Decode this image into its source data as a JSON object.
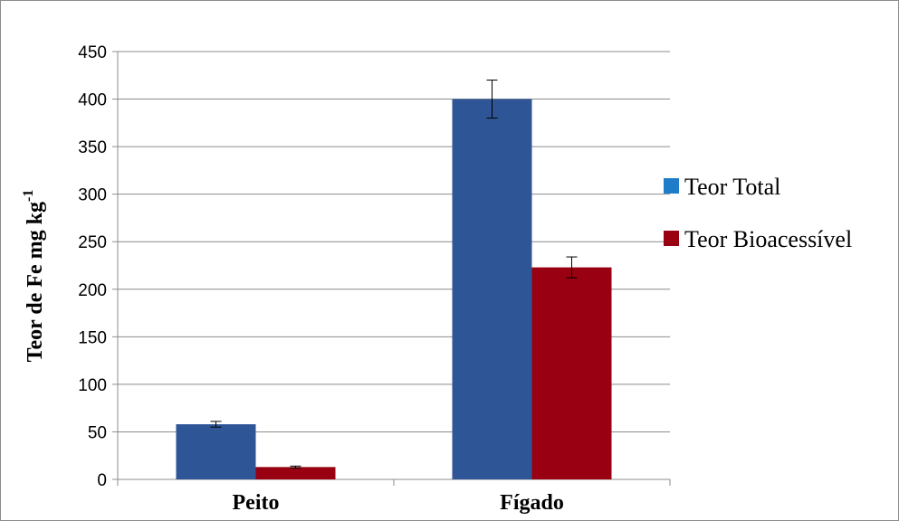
{
  "chart_data": {
    "type": "bar",
    "categories": [
      "Peito",
      "Fígado"
    ],
    "series": [
      {
        "name": "Teor Total",
        "values": [
          58,
          400
        ],
        "errors": [
          3,
          20
        ],
        "color": "#2E5596"
      },
      {
        "name": "Teor Bioacessível",
        "values": [
          13,
          223
        ],
        "errors": [
          1,
          11
        ],
        "color": "#990012"
      }
    ],
    "ylabel": "Teor de Fe mg kg",
    "ylabel_superscript": "-1",
    "ylim": [
      0,
      450
    ],
    "yticks": [
      0,
      50,
      100,
      150,
      200,
      250,
      300,
      350,
      400,
      450
    ],
    "ytick_labels": [
      "0",
      "50",
      "100",
      "150",
      "200",
      "250",
      "300",
      "350",
      "400",
      "450"
    ],
    "grid": true,
    "legend_position": "right"
  }
}
